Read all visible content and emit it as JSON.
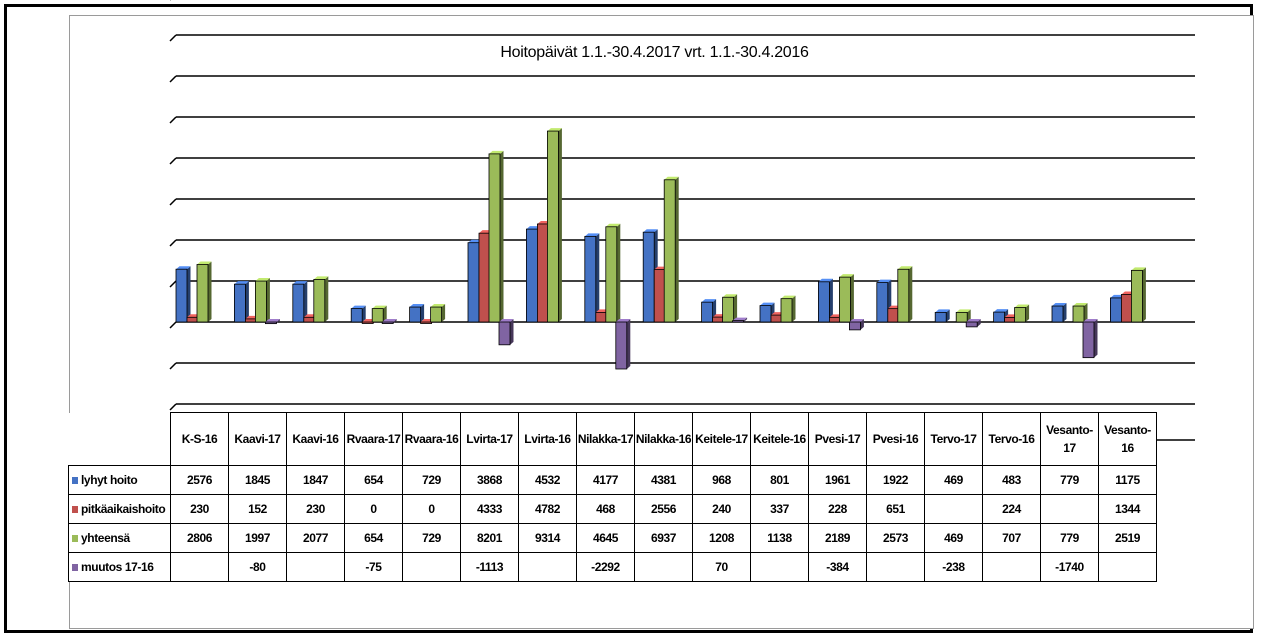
{
  "chart_data": {
    "type": "bar",
    "title": "Hoitopäivät 1.1.-30.4.2017 vrt.  1.1.-30.4.2016",
    "categories": [
      "K-S-16",
      "Kaavi-17",
      "Kaavi-16",
      "Rvaara-17",
      "Rvaara-16",
      "Lvirta-17",
      "Lvirta-16",
      "Nilakka-17",
      "Nilakka-16",
      "Keitele-17",
      "Keitele-16",
      "Pvesi-17",
      "Pvesi-16",
      "Tervo-17",
      "Tervo-16",
      "Vesanto-17",
      "Vesanto-16"
    ],
    "series": [
      {
        "name": "lyhyt hoito",
        "color": "#4472C4",
        "values": [
          2576,
          1845,
          1847,
          654,
          729,
          3868,
          4532,
          4177,
          4381,
          968,
          801,
          1961,
          1922,
          469,
          483,
          779,
          1175
        ]
      },
      {
        "name": "pitkäaikaishoito",
        "color": "#C0504D",
        "values": [
          230,
          152,
          230,
          0,
          0,
          4333,
          4782,
          468,
          2556,
          240,
          337,
          228,
          651,
          null,
          224,
          null,
          1344
        ]
      },
      {
        "name": "yhteensä",
        "color": "#9BBB59",
        "values": [
          2806,
          1997,
          2077,
          654,
          729,
          8201,
          9314,
          4645,
          6937,
          1208,
          1138,
          2189,
          2573,
          469,
          707,
          779,
          2519
        ]
      },
      {
        "name": "muutos 17-16",
        "color": "#8064A2",
        "values": [
          null,
          -80,
          null,
          -75,
          null,
          -1113,
          null,
          -2292,
          null,
          70,
          null,
          -384,
          null,
          -238,
          null,
          -1740,
          null
        ]
      }
    ],
    "ylim": [
      -4000,
      16000
    ],
    "grid": true,
    "legend": "in data table"
  }
}
